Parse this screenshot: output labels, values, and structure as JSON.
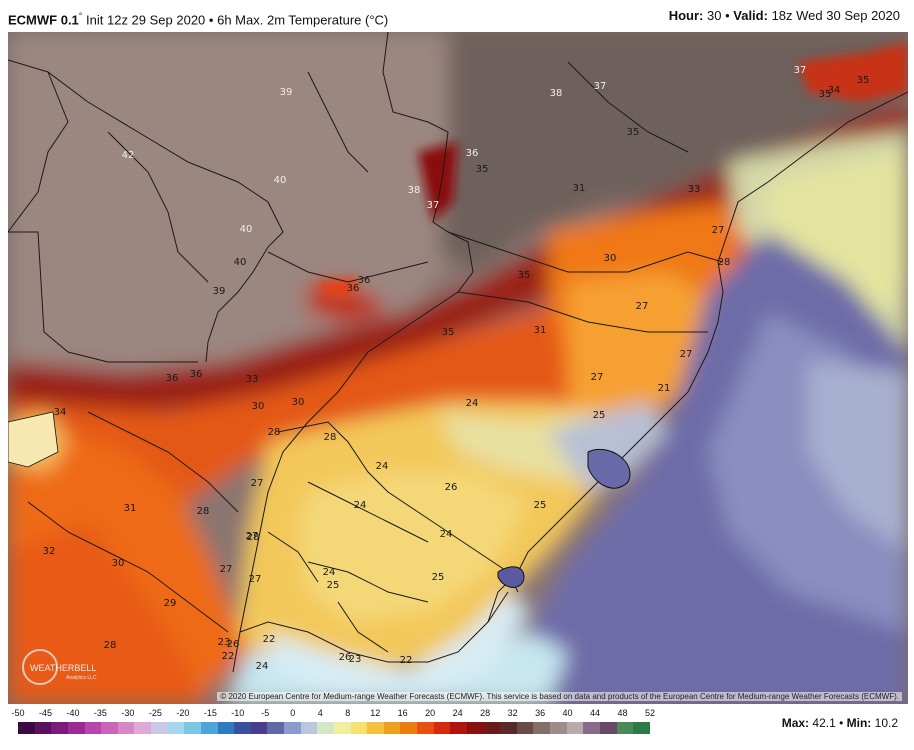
{
  "header": {
    "model": "ECMWF 0.1",
    "degree": "°",
    "init_text": "Init 12z 29 Sep 2020",
    "sep": "•",
    "product": "6h Max. 2m Temperature (°C)",
    "hour_label": "Hour:",
    "hour_value": "30",
    "valid_label": "Valid:",
    "valid_value": "18z Wed 30 Sep 2020"
  },
  "credit": "© 2020 European Centre for Medium-range Weather Forecasts (ECMWF). This service is based on data and products of the European Centre for Medium-range Weather Forecasts (ECMWF).",
  "logo": {
    "text": "WEATHERBELL",
    "subtext": "Analytics LLC"
  },
  "stats": {
    "max_label": "Max:",
    "max_value": "42.1",
    "min_label": "Min:",
    "min_value": "10.2"
  },
  "colorbar": {
    "ticks": [
      "-50",
      "-45",
      "-40",
      "-35",
      "-30",
      "-25",
      "-20",
      "-15",
      "-10",
      "-5",
      "0",
      "4",
      "8",
      "12",
      "16",
      "20",
      "24",
      "28",
      "32",
      "36",
      "40",
      "44",
      "48",
      "52"
    ],
    "colors": [
      "#3b0a45",
      "#5a1260",
      "#7a1d7a",
      "#9a2a96",
      "#b845ac",
      "#c865b8",
      "#d488c6",
      "#e0a8d4",
      "#c8c8e8",
      "#a6d6ee",
      "#7cc6e8",
      "#4ea6d8",
      "#2e7cc0",
      "#3a4f9e",
      "#4a3f8c",
      "#5e6aa8",
      "#8a9ccc",
      "#b8c6e0",
      "#d6e6c8",
      "#eff0a0",
      "#f8e070",
      "#f4c040",
      "#f0a020",
      "#ee7a12",
      "#e85010",
      "#d42a0e",
      "#b0140e",
      "#8a1010",
      "#6a1a1a",
      "#5a2a2a",
      "#6a4a46",
      "#846e68",
      "#9e8c88",
      "#b8aaa8",
      "#8a6a8a",
      "#6a4a6a",
      "#4a8a5a",
      "#2a7a4a"
    ]
  },
  "map": {
    "temp_labels": [
      {
        "t": "42"
      },
      {
        "t": "39"
      },
      {
        "t": "38"
      },
      {
        "t": "37"
      },
      {
        "t": "37"
      },
      {
        "t": "35"
      },
      {
        "t": "35"
      },
      {
        "t": "34"
      },
      {
        "t": "36"
      },
      {
        "t": "35"
      },
      {
        "t": "38"
      },
      {
        "t": "37"
      },
      {
        "t": "40"
      },
      {
        "t": "40"
      },
      {
        "t": "40"
      },
      {
        "t": "39"
      },
      {
        "t": "31"
      },
      {
        "t": "33"
      },
      {
        "t": "27"
      },
      {
        "t": "30"
      },
      {
        "t": "28"
      },
      {
        "t": "35"
      },
      {
        "t": "36"
      },
      {
        "t": "36"
      },
      {
        "t": "35"
      },
      {
        "t": "31"
      },
      {
        "t": "27"
      },
      {
        "t": "27"
      },
      {
        "t": "36"
      },
      {
        "t": "36"
      },
      {
        "t": "33"
      },
      {
        "t": "30"
      },
      {
        "t": "30"
      },
      {
        "t": "34"
      },
      {
        "t": "27"
      },
      {
        "t": "21"
      },
      {
        "t": "24"
      },
      {
        "t": "25"
      },
      {
        "t": "28"
      },
      {
        "t": "28"
      },
      {
        "t": "24"
      },
      {
        "t": "26"
      },
      {
        "t": "24"
      },
      {
        "t": "27"
      },
      {
        "t": "31"
      },
      {
        "t": "28"
      },
      {
        "t": "24"
      },
      {
        "t": "25"
      },
      {
        "t": "27"
      },
      {
        "t": "28"
      },
      {
        "t": "27"
      },
      {
        "t": "27"
      },
      {
        "t": "24"
      },
      {
        "t": "32"
      },
      {
        "t": "30"
      },
      {
        "t": "25"
      },
      {
        "t": "25"
      },
      {
        "t": "29"
      },
      {
        "t": "28"
      },
      {
        "t": "23"
      },
      {
        "t": "22"
      },
      {
        "t": "26"
      },
      {
        "t": "24"
      },
      {
        "t": "22"
      },
      {
        "t": "26"
      },
      {
        "t": "23"
      },
      {
        "t": "22"
      },
      {
        "t": "35"
      }
    ]
  }
}
